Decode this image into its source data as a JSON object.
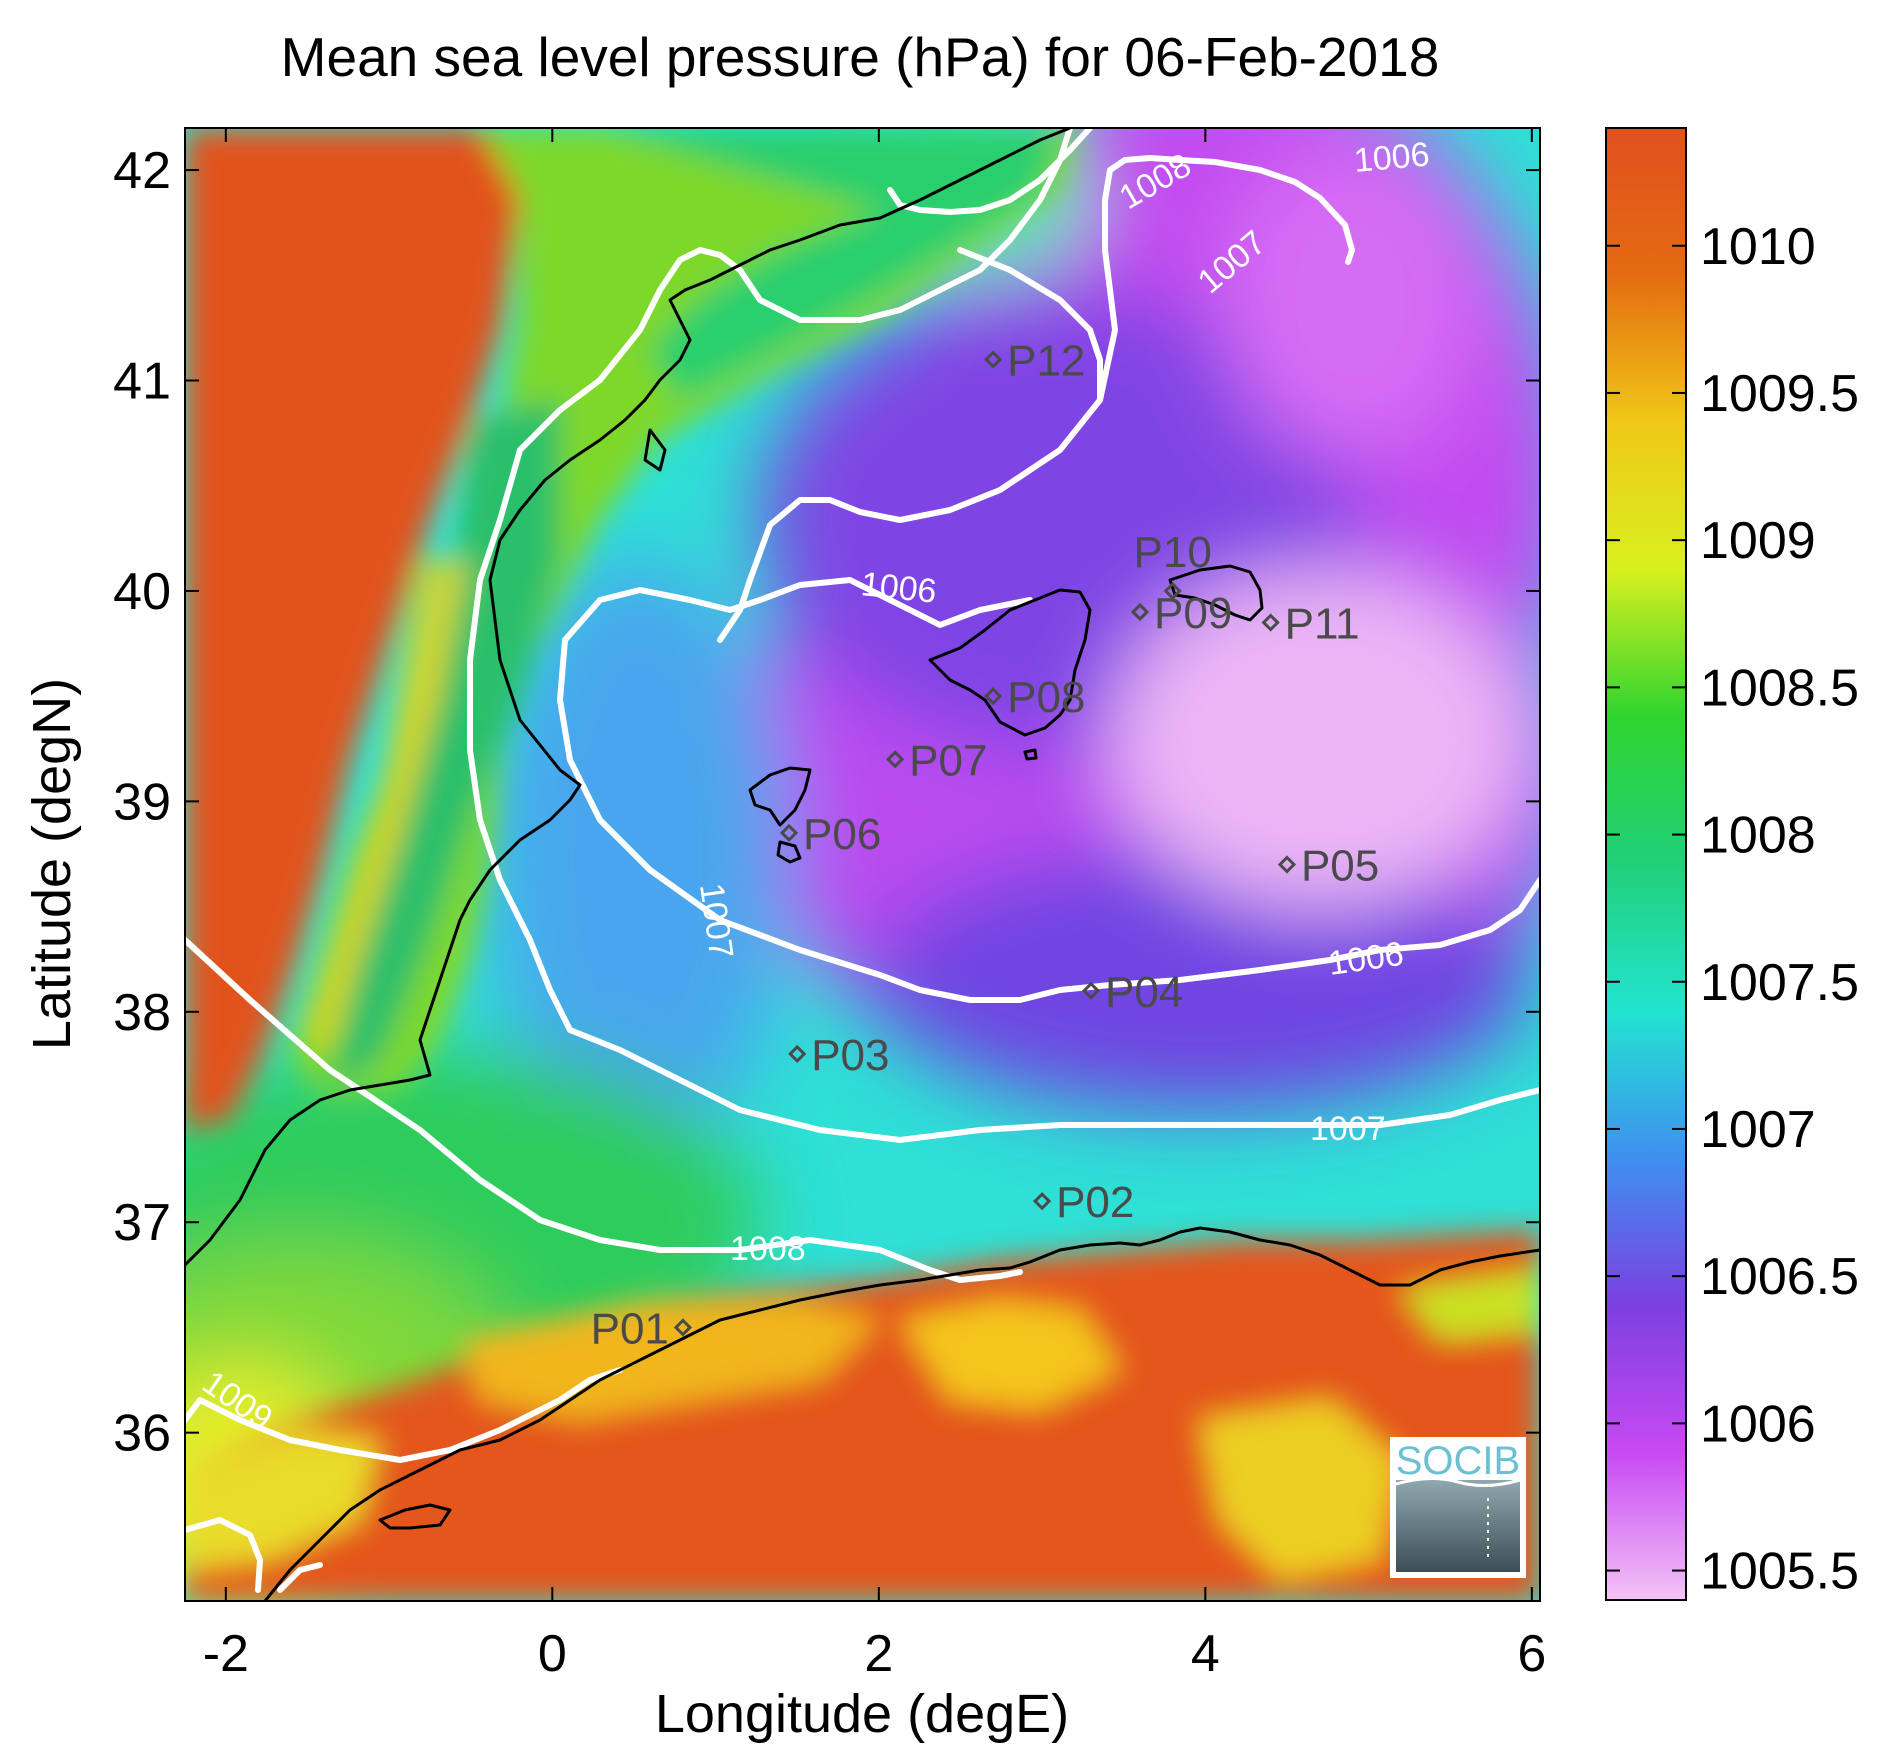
{
  "title": "Mean sea level pressure (hPa) for 06-Feb-2018",
  "x_axis": {
    "label": "Longitude (degE)",
    "ticks": [
      {
        "v": -2,
        "label": "-2"
      },
      {
        "v": 0,
        "label": "0"
      },
      {
        "v": 2,
        "label": "2"
      },
      {
        "v": 4,
        "label": "4"
      },
      {
        "v": 6,
        "label": "6"
      }
    ],
    "range": [
      -2.25,
      6.05
    ]
  },
  "y_axis": {
    "label": "Latitude (degN)",
    "ticks": [
      {
        "v": 36,
        "label": "36"
      },
      {
        "v": 37,
        "label": "37"
      },
      {
        "v": 38,
        "label": "38"
      },
      {
        "v": 39,
        "label": "39"
      },
      {
        "v": 40,
        "label": "40"
      },
      {
        "v": 41,
        "label": "41"
      },
      {
        "v": 42,
        "label": "42"
      }
    ],
    "range": [
      35.2,
      42.2
    ]
  },
  "colorbar": {
    "range": [
      1005.4,
      1010.4
    ],
    "ticks": [
      {
        "v": 1005.5,
        "label": "1005.5"
      },
      {
        "v": 1006,
        "label": "1006"
      },
      {
        "v": 1006.5,
        "label": "1006.5"
      },
      {
        "v": 1007,
        "label": "1007"
      },
      {
        "v": 1007.5,
        "label": "1007.5"
      },
      {
        "v": 1008,
        "label": "1008"
      },
      {
        "v": 1008.5,
        "label": "1008.5"
      },
      {
        "v": 1009,
        "label": "1009"
      },
      {
        "v": 1009.5,
        "label": "1009.5"
      },
      {
        "v": 1010,
        "label": "1010"
      }
    ],
    "colors": [
      "#f3c3f7",
      "#c84af3",
      "#7c3fe0",
      "#3f8ff0",
      "#22e4d0",
      "#21d07a",
      "#2fd42f",
      "#d8f01f",
      "#f0c817",
      "#e56b12",
      "#e0501f"
    ]
  },
  "chart_data": {
    "type": "heatmap",
    "variable": "Mean sea level pressure (hPa)",
    "date": "06-Feb-2018",
    "contour_labels": [
      "1006",
      "1006",
      "1006",
      "1007",
      "1007",
      "1007",
      "1008",
      "1008",
      "1009"
    ],
    "points": [
      {
        "name": "P01",
        "lon": 0.8,
        "lat": 36.5
      },
      {
        "name": "P02",
        "lon": 3.0,
        "lat": 37.1
      },
      {
        "name": "P03",
        "lon": 1.5,
        "lat": 37.8
      },
      {
        "name": "P04",
        "lon": 3.3,
        "lat": 38.1
      },
      {
        "name": "P05",
        "lon": 4.5,
        "lat": 38.7
      },
      {
        "name": "P06",
        "lon": 1.45,
        "lat": 38.85
      },
      {
        "name": "P07",
        "lon": 2.1,
        "lat": 39.2
      },
      {
        "name": "P08",
        "lon": 2.7,
        "lat": 39.5
      },
      {
        "name": "P09",
        "lon": 3.6,
        "lat": 39.9
      },
      {
        "name": "P10",
        "lon": 3.8,
        "lat": 40.0
      },
      {
        "name": "P11",
        "lon": 4.4,
        "lat": 39.85
      },
      {
        "name": "P12",
        "lon": 2.7,
        "lat": 41.1
      }
    ]
  },
  "logo": {
    "text": "SOCIB"
  }
}
